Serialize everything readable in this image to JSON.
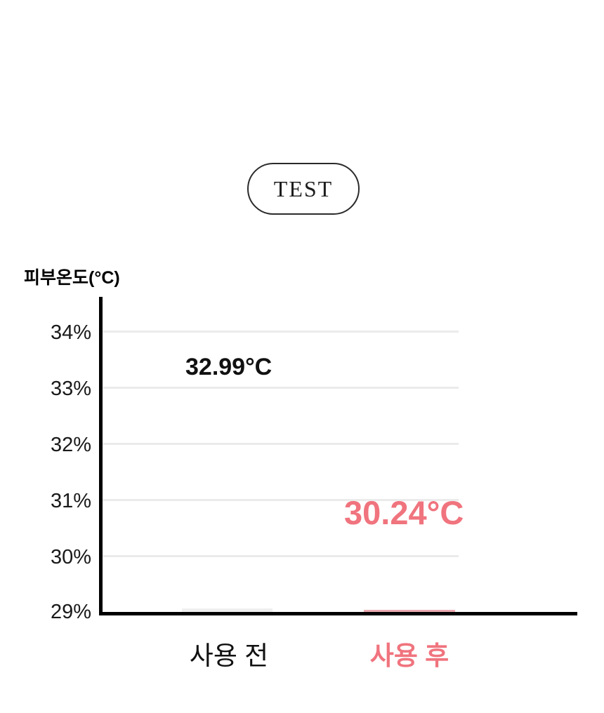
{
  "badge": {
    "label": "TEST"
  },
  "chart_data": {
    "type": "bar",
    "title": "TEST",
    "xlabel": "",
    "ylabel": "피부온도(°C)",
    "categories": [
      "사용 전",
      "사용 후"
    ],
    "series": [
      {
        "name": "피부온도(°C)",
        "values": [
          32.99,
          30.24
        ]
      }
    ],
    "value_labels": [
      "32.99°C",
      "30.24°C"
    ],
    "ytick_labels": [
      "34%",
      "33%",
      "32%",
      "31%",
      "30%",
      "29%"
    ],
    "ylim": [
      29,
      34.6
    ],
    "grid": true,
    "legend_position": "none",
    "colors": {
      "value_before_text": "#111111",
      "accent_after": "#F0747E",
      "bar_before": "#EFEFEF",
      "bar_after": "#EBA9AF",
      "gridline": "#EBEBEB",
      "axis": "#000000",
      "badge_border": "#2B2B2B"
    }
  }
}
